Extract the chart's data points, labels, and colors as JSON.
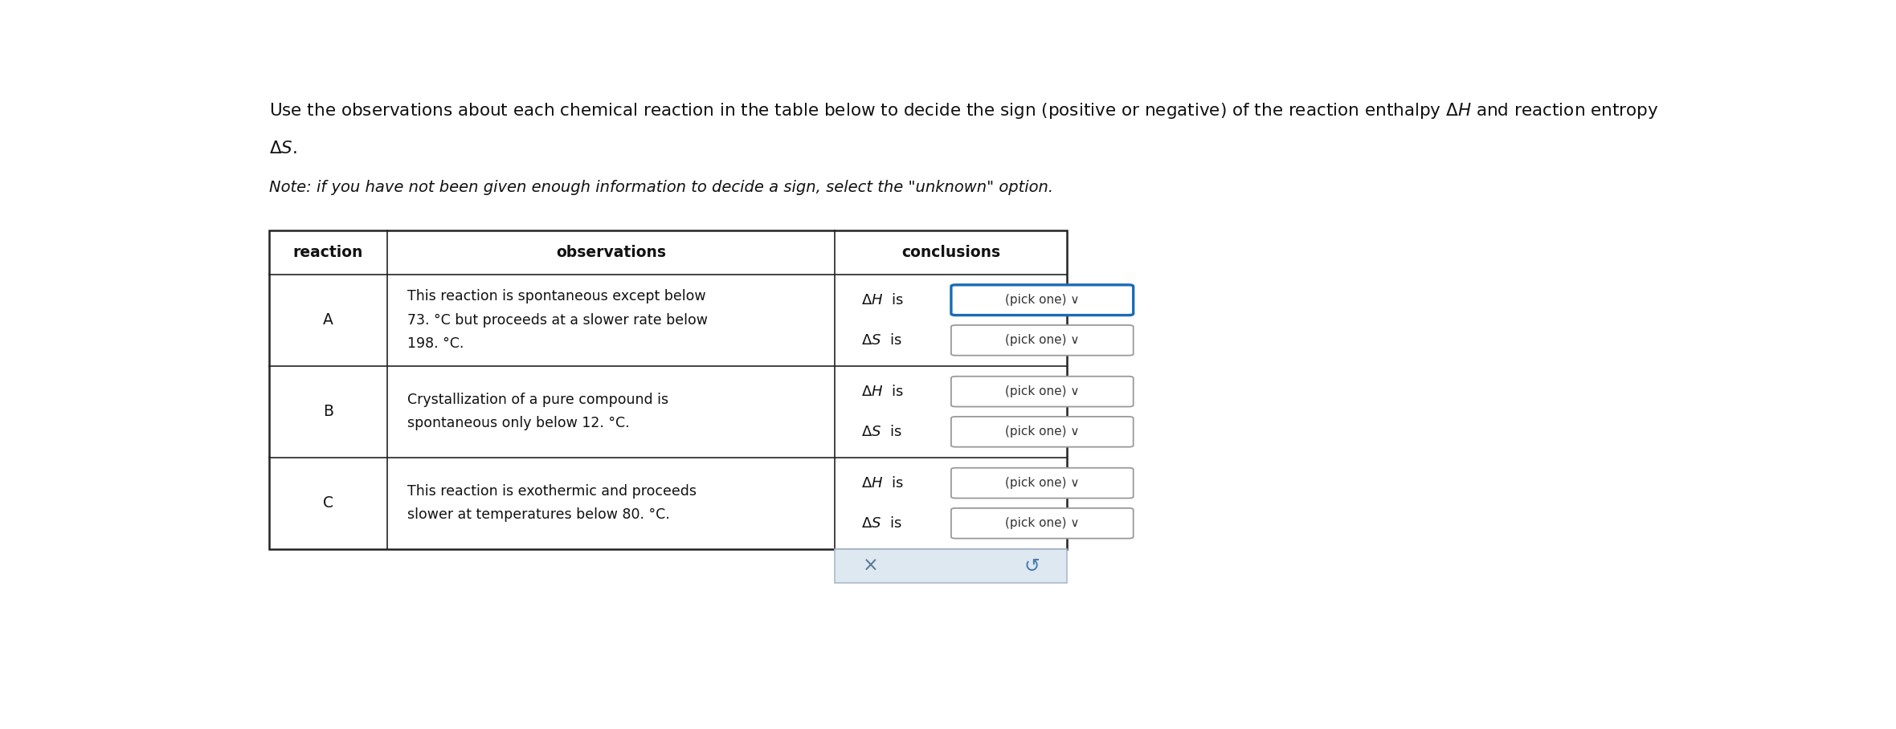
{
  "title_line1": "Use the observations about each chemical reaction in the table below to decide the sign (positive or negative) of the reaction enthalpy $\\Delta H$ and reaction entropy",
  "title_line2": "$\\Delta S$.",
  "note": "Note: if you have not been given enough information to decide a sign, select the \"unknown\" option.",
  "header_reaction": "reaction",
  "header_observations": "observations",
  "header_conclusions": "conclusions",
  "rows": [
    {
      "reaction": "A",
      "observation_lines": [
        "This reaction is spontaneous except below",
        "73. °C but proceeds at a slower rate below",
        "198. °C."
      ],
      "obs_big_numbers": [
        "73",
        "198"
      ],
      "dH_blue_border": true,
      "dS_blue_border": false
    },
    {
      "reaction": "B",
      "observation_lines": [
        "Crystallization of a pure compound is",
        "spontaneous only below 12. °C."
      ],
      "obs_big_numbers": [
        "12"
      ],
      "dH_blue_border": false,
      "dS_blue_border": false
    },
    {
      "reaction": "C",
      "observation_lines": [
        "This reaction is exothermic and proceeds",
        "slower at temperatures below 80. °C."
      ],
      "obs_big_numbers": [
        "80"
      ],
      "dH_blue_border": false,
      "dS_blue_border": false
    }
  ],
  "background_color": "#ffffff",
  "table_border_color": "#222222",
  "box_border_color_normal": "#999999",
  "box_border_color_blue": "#1a6bb5",
  "text_color": "#111111",
  "button_bg": "#dde8f0",
  "button_border": "#aabbcc"
}
